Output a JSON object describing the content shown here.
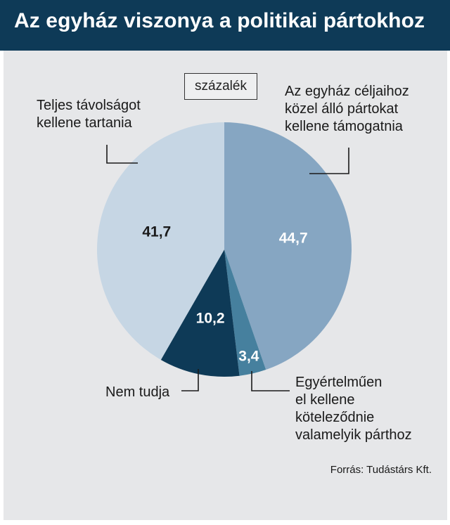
{
  "title": "Az egyház viszonya a politikai pártokhoz",
  "unit": "százalék",
  "source": "Forrás: Tudástárs Kft.",
  "chart_data": {
    "type": "pie",
    "title": "Az egyház viszonya a politikai pártokhoz",
    "unit": "százalék",
    "slices": [
      {
        "label": "Az egyház céljaihoz közel álló pártokat kellene támogatnia",
        "value": 44.7,
        "display": "44,7",
        "color": "#86a6c2",
        "text_color": "#ffffff"
      },
      {
        "label": "Egyértelműen el kellene köteleződnie valamelyik párthoz",
        "value": 3.4,
        "display": "3,4",
        "color": "#46809e",
        "text_color": "#ffffff"
      },
      {
        "label": "Nem tudja",
        "value": 10.2,
        "display": "10,2",
        "color": "#0e3a57",
        "text_color": "#ffffff"
      },
      {
        "label": "Teljes távolságot kellene tartania",
        "value": 41.7,
        "display": "41,7",
        "color": "#c6d6e4",
        "text_color": "#1a1a1a"
      }
    ],
    "start": "12 o'clock",
    "direction": "clockwise"
  },
  "labels": {
    "top_right": [
      "Az egyház céljaihoz",
      "közel álló pártokat",
      "kellene támogatnia"
    ],
    "bottom_right": [
      "Egyértelműen",
      "el kellene",
      "köteleződnie",
      "valamelyik párthoz"
    ],
    "bottom_left": [
      "Nem tudja"
    ],
    "top_left": [
      "Teljes távolságot",
      "kellene tartania"
    ]
  }
}
